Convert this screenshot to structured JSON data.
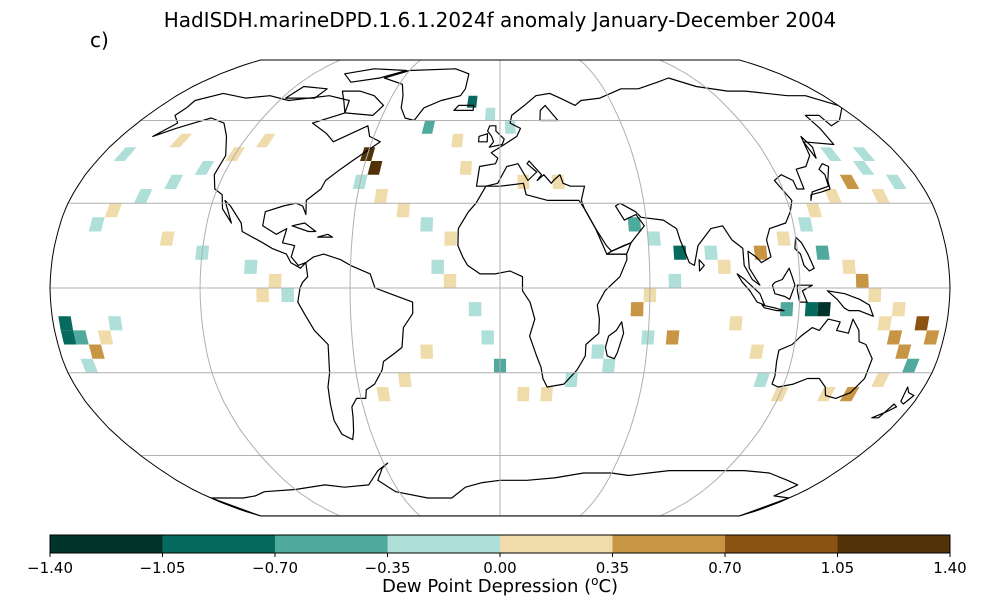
{
  "title": "HadISDH.marineDPD.1.6.1.2024f anomaly January-December 2004",
  "panel_label": "c)",
  "colorbar": {
    "label_main": "Dew Point Depression (",
    "label_sup": "o",
    "label_end": "C)",
    "ticks": [
      "−1.40",
      "−1.05",
      "−0.70",
      "−0.35",
      "0.00",
      "0.35",
      "0.70",
      "1.05",
      "1.40"
    ],
    "bins": [
      {
        "lo": -1.4,
        "hi": -1.05,
        "color": "#01332b"
      },
      {
        "lo": -1.05,
        "hi": -0.7,
        "color": "#076a5e"
      },
      {
        "lo": -0.7,
        "hi": -0.35,
        "color": "#4fa99c"
      },
      {
        "lo": -0.35,
        "hi": 0.0,
        "color": "#aedfd8"
      },
      {
        "lo": 0.0,
        "hi": 0.35,
        "color": "#f0dcab"
      },
      {
        "lo": 0.35,
        "hi": 0.7,
        "color": "#c89545"
      },
      {
        "lo": 0.7,
        "hi": 1.05,
        "color": "#8c5212"
      },
      {
        "lo": 1.05,
        "hi": 1.4,
        "color": "#523308"
      }
    ]
  },
  "map": {
    "projection": "Robinson",
    "gridline_color": "#b0b0b0",
    "coastline_color": "#000000"
  },
  "chart_data": {
    "type": "heatmap",
    "title": "HadISDH.marineDPD.1.6.1.2024f anomaly January-December 2004",
    "cell_size_deg": 5,
    "value_range": [
      -1.4,
      1.4
    ],
    "units": "Dew Point Depression (oC)",
    "cells": [
      {
        "lon": -165,
        "lat": 22.5,
        "v": -0.2
      },
      {
        "lon": -160,
        "lat": 27.5,
        "v": 0.2
      },
      {
        "lon": -150,
        "lat": 32.5,
        "v": -0.2
      },
      {
        "lon": -140,
        "lat": 37.5,
        "v": -0.2
      },
      {
        "lon": -130,
        "lat": 42.5,
        "v": -0.2
      },
      {
        "lon": -120,
        "lat": 47.5,
        "v": 0.2
      },
      {
        "lon": -110,
        "lat": 52.5,
        "v": 0.2
      },
      {
        "lon": -150,
        "lat": 52.5,
        "v": 0.2
      },
      {
        "lon": -170,
        "lat": 47.5,
        "v": -0.2
      },
      {
        "lon": -135,
        "lat": 17.5,
        "v": 0.2
      },
      {
        "lon": -120,
        "lat": 12.5,
        "v": -0.2
      },
      {
        "lon": -100,
        "lat": 7.5,
        "v": -0.2
      },
      {
        "lon": -90,
        "lat": 2.5,
        "v": 0.2
      },
      {
        "lon": -85,
        "lat": -2.5,
        "v": -0.2
      },
      {
        "lon": -95,
        "lat": -2.5,
        "v": 0.2
      },
      {
        "lon": -60,
        "lat": 47.5,
        "v": 1.2
      },
      {
        "lon": -55,
        "lat": 42.5,
        "v": 1.2
      },
      {
        "lon": -60,
        "lat": 37.5,
        "v": -0.2
      },
      {
        "lon": -50,
        "lat": 32.5,
        "v": 0.2
      },
      {
        "lon": -40,
        "lat": 27.5,
        "v": 0.2
      },
      {
        "lon": -30,
        "lat": 22.5,
        "v": -0.2
      },
      {
        "lon": -20,
        "lat": 17.5,
        "v": 0.2
      },
      {
        "lon": -25,
        "lat": 7.5,
        "v": -0.2
      },
      {
        "lon": -20,
        "lat": 2.5,
        "v": 0.2
      },
      {
        "lon": -10,
        "lat": -7.5,
        "v": -0.2
      },
      {
        "lon": -5,
        "lat": -17.5,
        "v": -0.2
      },
      {
        "lon": 0,
        "lat": -27.5,
        "v": -0.5
      },
      {
        "lon": 10,
        "lat": -37.5,
        "v": 0.2
      },
      {
        "lon": 20,
        "lat": -37.5,
        "v": 0.2
      },
      {
        "lon": -30,
        "lat": -22.5,
        "v": 0.2
      },
      {
        "lon": -40,
        "lat": -32.5,
        "v": 0.2
      },
      {
        "lon": -50,
        "lat": -37.5,
        "v": 0.2
      },
      {
        "lon": -15,
        "lat": 67.5,
        "v": -0.8
      },
      {
        "lon": -5,
        "lat": 62.5,
        "v": -0.2
      },
      {
        "lon": 5,
        "lat": 57.5,
        "v": -0.2
      },
      {
        "lon": -35,
        "lat": 57.5,
        "v": -0.5
      },
      {
        "lon": -20,
        "lat": 52.5,
        "v": 0.2
      },
      {
        "lon": -15,
        "lat": 42.5,
        "v": 0.2
      },
      {
        "lon": 10,
        "lat": 37.5,
        "v": 0.2
      },
      {
        "lon": 25,
        "lat": 37.5,
        "v": 0.2
      },
      {
        "lon": 55,
        "lat": 22.5,
        "v": -0.5
      },
      {
        "lon": 62.5,
        "lat": 17.5,
        "v": -0.2
      },
      {
        "lon": 72.5,
        "lat": 12.5,
        "v": -0.8
      },
      {
        "lon": 70,
        "lat": 2.5,
        "v": -0.2
      },
      {
        "lon": 60,
        "lat": -2.5,
        "v": 0.2
      },
      {
        "lon": 55,
        "lat": -7.5,
        "v": 0.5
      },
      {
        "lon": 70,
        "lat": -17.5,
        "v": 0.5
      },
      {
        "lon": 60,
        "lat": -17.5,
        "v": -0.2
      },
      {
        "lon": 40,
        "lat": -22.5,
        "v": -0.2
      },
      {
        "lon": 45,
        "lat": -27.5,
        "v": -0.2
      },
      {
        "lon": 30,
        "lat": -32.5,
        "v": -0.2
      },
      {
        "lon": 85,
        "lat": 12.5,
        "v": -0.2
      },
      {
        "lon": 90,
        "lat": 7.5,
        "v": 0.2
      },
      {
        "lon": 105,
        "lat": 12.5,
        "v": 0.5
      },
      {
        "lon": 115,
        "lat": 17.5,
        "v": 0.2
      },
      {
        "lon": 125,
        "lat": 22.5,
        "v": -0.2
      },
      {
        "lon": 130,
        "lat": 27.5,
        "v": 0.2
      },
      {
        "lon": 140,
        "lat": 32.5,
        "v": 0.2
      },
      {
        "lon": 150,
        "lat": 37.5,
        "v": 0.5
      },
      {
        "lon": 160,
        "lat": 32.5,
        "v": 0.2
      },
      {
        "lon": 170,
        "lat": 37.5,
        "v": -0.2
      },
      {
        "lon": 160,
        "lat": 42.5,
        "v": -0.2
      },
      {
        "lon": 150,
        "lat": 47.5,
        "v": -0.2
      },
      {
        "lon": 165,
        "lat": 47.5,
        "v": -0.2
      },
      {
        "lon": 130,
        "lat": 12.5,
        "v": -0.5
      },
      {
        "lon": 140,
        "lat": 7.5,
        "v": 0.2
      },
      {
        "lon": 145,
        "lat": 2.5,
        "v": 0.5
      },
      {
        "lon": 150,
        "lat": -2.5,
        "v": 0.2
      },
      {
        "lon": 160,
        "lat": -7.5,
        "v": 0.2
      },
      {
        "lon": 130,
        "lat": -7.5,
        "v": -1.2
      },
      {
        "lon": 125,
        "lat": -7.5,
        "v": -0.8
      },
      {
        "lon": 115,
        "lat": -7.5,
        "v": -0.5
      },
      {
        "lon": 155,
        "lat": -12.5,
        "v": 0.2
      },
      {
        "lon": 160,
        "lat": -17.5,
        "v": 0.5
      },
      {
        "lon": 170,
        "lat": -12.5,
        "v": 0.8
      },
      {
        "lon": 175,
        "lat": -17.5,
        "v": 0.5
      },
      {
        "lon": 165,
        "lat": -22.5,
        "v": 0.5
      },
      {
        "lon": 170,
        "lat": -27.5,
        "v": -0.5
      },
      {
        "lon": 160,
        "lat": -32.5,
        "v": 0.2
      },
      {
        "lon": 150,
        "lat": -37.5,
        "v": 0.5
      },
      {
        "lon": 140,
        "lat": -37.5,
        "v": 0.2
      },
      {
        "lon": 120,
        "lat": -37.5,
        "v": 0.2
      },
      {
        "lon": 110,
        "lat": -32.5,
        "v": -0.2
      },
      {
        "lon": 105,
        "lat": -22.5,
        "v": 0.2
      },
      {
        "lon": 95,
        "lat": -12.5,
        "v": 0.2
      },
      {
        "lon": -175,
        "lat": -12.5,
        "v": -0.8
      },
      {
        "lon": -170,
        "lat": -17.5,
        "v": -0.5
      },
      {
        "lon": -165,
        "lat": -22.5,
        "v": 0.5
      },
      {
        "lon": -175,
        "lat": -17.5,
        "v": -0.8
      },
      {
        "lon": -155,
        "lat": -12.5,
        "v": -0.2
      },
      {
        "lon": -160,
        "lat": -17.5,
        "v": 0.2
      },
      {
        "lon": -170,
        "lat": -27.5,
        "v": -0.2
      }
    ]
  }
}
